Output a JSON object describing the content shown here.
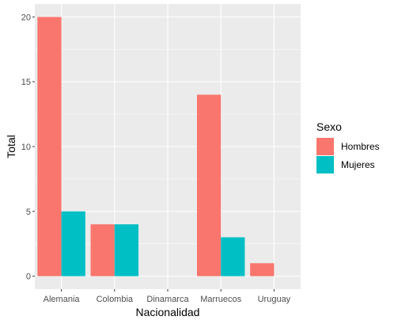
{
  "chart_data": {
    "type": "bar",
    "xlabel": "Nacionalidad",
    "ylabel": "Total",
    "categories": [
      "Alemania",
      "Colombia",
      "Dinamarca",
      "Marruecos",
      "Uruguay"
    ],
    "series": [
      {
        "name": "Hombres",
        "values": [
          20,
          4,
          0,
          14,
          1
        ],
        "color": "#F8766D"
      },
      {
        "name": "Mujeres",
        "values": [
          5,
          4,
          0,
          3,
          0
        ],
        "color": "#00BFC4"
      }
    ],
    "ylim": [
      -1,
      21
    ],
    "yticks": [
      0,
      5,
      10,
      15,
      20
    ],
    "grid": true,
    "legend": {
      "title": "Sexo",
      "position": "right"
    },
    "panel_color": "#EBEBEB",
    "grid_color": "#FFFFFF"
  }
}
